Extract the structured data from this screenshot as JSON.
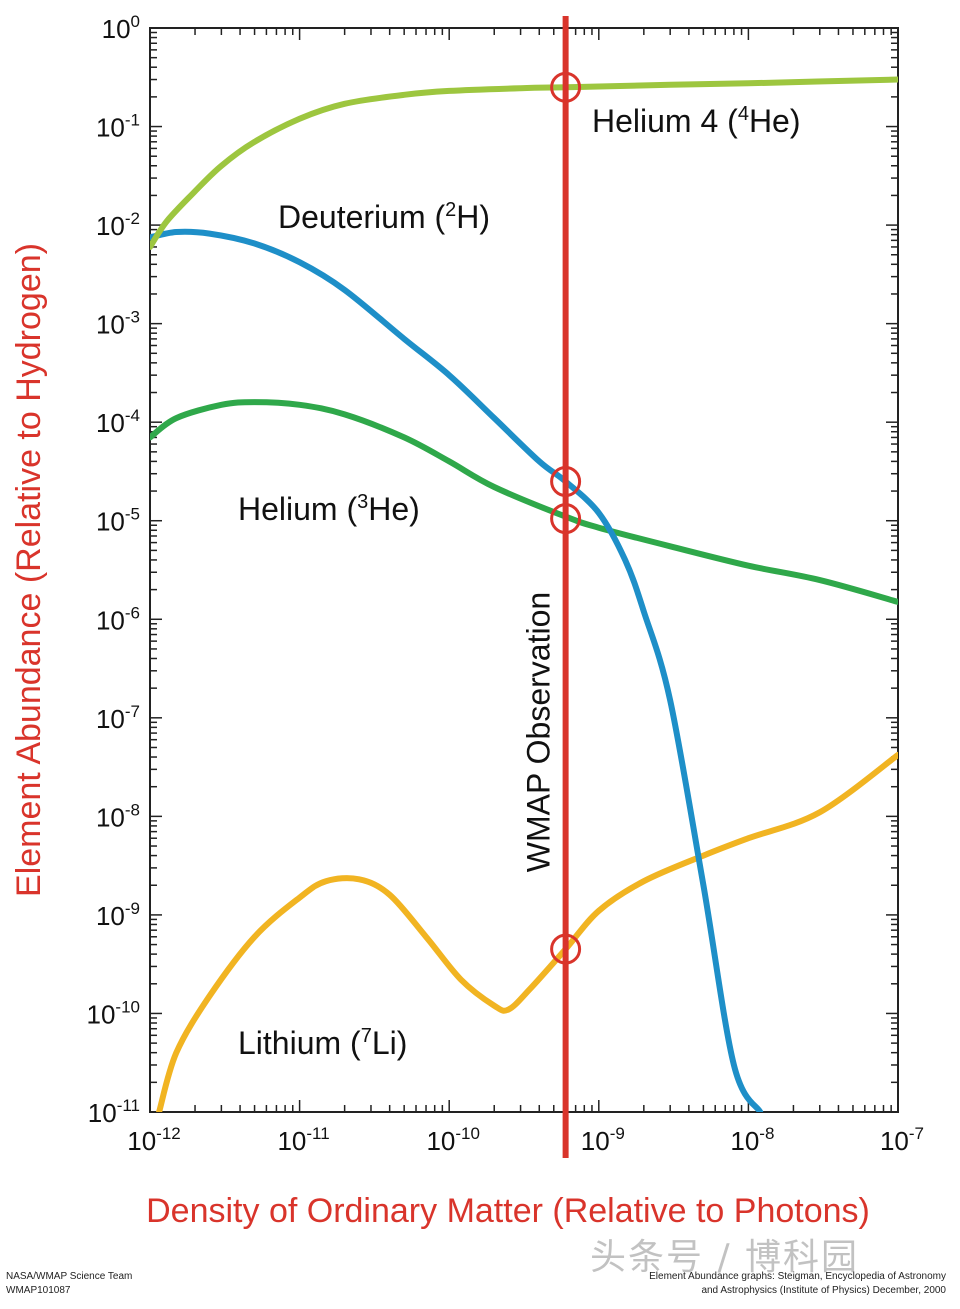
{
  "chart_data": {
    "type": "line",
    "title": "",
    "xlabel": "Density of Ordinary Matter (Relative to Photons)",
    "ylabel": "Element Abundance (Relative to Hydrogen)",
    "x_scale": "log",
    "y_scale": "log",
    "xlim": [
      1e-12,
      1e-07
    ],
    "ylim": [
      1e-11,
      1
    ],
    "x_ticks": [
      {
        "base": "10",
        "exp": "-12",
        "value": 1e-12
      },
      {
        "base": "10",
        "exp": "-11",
        "value": 1e-11
      },
      {
        "base": "10",
        "exp": "-10",
        "value": 1e-10
      },
      {
        "base": "10",
        "exp": "-9",
        "value": 1e-09
      },
      {
        "base": "10",
        "exp": "-8",
        "value": 1e-08
      },
      {
        "base": "10",
        "exp": "-7",
        "value": 1e-07
      }
    ],
    "y_ticks": [
      {
        "base": "10",
        "exp": "0",
        "value": 1
      },
      {
        "base": "10",
        "exp": "-1",
        "value": 0.1
      },
      {
        "base": "10",
        "exp": "-2",
        "value": 0.01
      },
      {
        "base": "10",
        "exp": "-3",
        "value": 0.001
      },
      {
        "base": "10",
        "exp": "-4",
        "value": 0.0001
      },
      {
        "base": "10",
        "exp": "-5",
        "value": 1e-05
      },
      {
        "base": "10",
        "exp": "-6",
        "value": 1e-06
      },
      {
        "base": "10",
        "exp": "-7",
        "value": 1e-07
      },
      {
        "base": "10",
        "exp": "-8",
        "value": 1e-08
      },
      {
        "base": "10",
        "exp": "-9",
        "value": 1e-09
      },
      {
        "base": "10",
        "exp": "-10",
        "value": 1e-10
      },
      {
        "base": "10",
        "exp": "-11",
        "value": 1e-11
      }
    ],
    "grid": false,
    "colors": {
      "axis_labels": "#d9342b",
      "observation": "#d9342b",
      "helium4": "#9dc63f",
      "deuterium": "#1e8fc8",
      "helium3": "#2fa84a",
      "lithium": "#f1b422"
    },
    "series": [
      {
        "key": "helium4",
        "label": {
          "prefix": "Helium 4 (",
          "sup": "4",
          "suffix": "He)"
        },
        "x": [
          1e-12,
          1.3e-12,
          2e-12,
          3e-12,
          5e-12,
          1e-11,
          2e-11,
          5e-11,
          1e-10,
          3e-10,
          6e-10,
          1e-09,
          3e-09,
          1e-08,
          1e-07
        ],
        "y": [
          0.006,
          0.011,
          0.022,
          0.04,
          0.07,
          0.12,
          0.17,
          0.21,
          0.23,
          0.245,
          0.25,
          0.255,
          0.265,
          0.275,
          0.3
        ]
      },
      {
        "key": "deuterium",
        "label": {
          "prefix": "Deuterium (",
          "sup": "2",
          "suffix": "H)"
        },
        "x": [
          1e-12,
          1.5e-12,
          2.5e-12,
          5e-12,
          1e-11,
          2e-11,
          5e-11,
          1e-10,
          2e-10,
          4e-10,
          6e-10,
          1e-09,
          1.5e-09,
          2e-09,
          3e-09,
          5e-09,
          8e-09,
          1.2e-08
        ],
        "y": [
          0.0075,
          0.0085,
          0.0082,
          0.0065,
          0.0042,
          0.0022,
          0.0007,
          0.0003,
          0.00011,
          4e-05,
          2.5e-05,
          1.2e-05,
          4e-06,
          1.2e-06,
          1.5e-07,
          2e-09,
          3e-11,
          1e-11
        ]
      },
      {
        "key": "helium3",
        "label": {
          "prefix": "Helium (",
          "sup": "3",
          "suffix": "He)"
        },
        "x": [
          1e-12,
          1.5e-12,
          3e-12,
          5e-12,
          1e-11,
          2e-11,
          5e-11,
          1e-10,
          2e-10,
          6e-10,
          1e-09,
          3e-09,
          1e-08,
          3e-08,
          1e-07
        ],
        "y": [
          7e-05,
          0.00011,
          0.00015,
          0.00016,
          0.00015,
          0.00012,
          7e-05,
          4e-05,
          2.2e-05,
          1.1e-05,
          8.5e-06,
          5.5e-06,
          3.5e-06,
          2.5e-06,
          1.5e-06
        ]
      },
      {
        "key": "lithium",
        "label": {
          "prefix": "Lithium (",
          "sup": "7",
          "suffix": "Li)"
        },
        "x": [
          1.15e-12,
          1.5e-12,
          2.5e-12,
          5e-12,
          1e-11,
          1.5e-11,
          2.5e-11,
          4e-11,
          7e-11,
          1.2e-10,
          2e-10,
          2.5e-10,
          3.5e-10,
          6e-10,
          1e-09,
          2e-09,
          5e-09,
          1e-08,
          3e-08,
          1e-07
        ],
        "y": [
          1e-11,
          4e-11,
          1.5e-10,
          6e-10,
          1.5e-09,
          2.2e-09,
          2.3e-09,
          1.6e-09,
          6e-10,
          2.2e-10,
          1.2e-10,
          1.1e-10,
          1.8e-10,
          4.5e-10,
          1.1e-09,
          2.2e-09,
          4e-09,
          6e-09,
          1.1e-08,
          4.2e-08
        ]
      }
    ],
    "observation": {
      "label": "WMAP Observation",
      "x": 6e-10,
      "points": [
        {
          "series": "helium4",
          "y": 0.25
        },
        {
          "series": "deuterium",
          "y": 2.5e-05
        },
        {
          "series": "helium3",
          "y": 1.05e-05
        },
        {
          "series": "lithium",
          "y": 4.5e-10
        }
      ]
    }
  },
  "credits": {
    "left_line1": "NASA/WMAP Science Team",
    "left_line2": "WMAP101087",
    "right_line1": "Element Abundance graphs: Steigman, Encyclopedia of Astronomy",
    "right_line2": "and Astrophysics (Institute of Physics) December, 2000"
  },
  "watermark": "头条号 / 博科园"
}
